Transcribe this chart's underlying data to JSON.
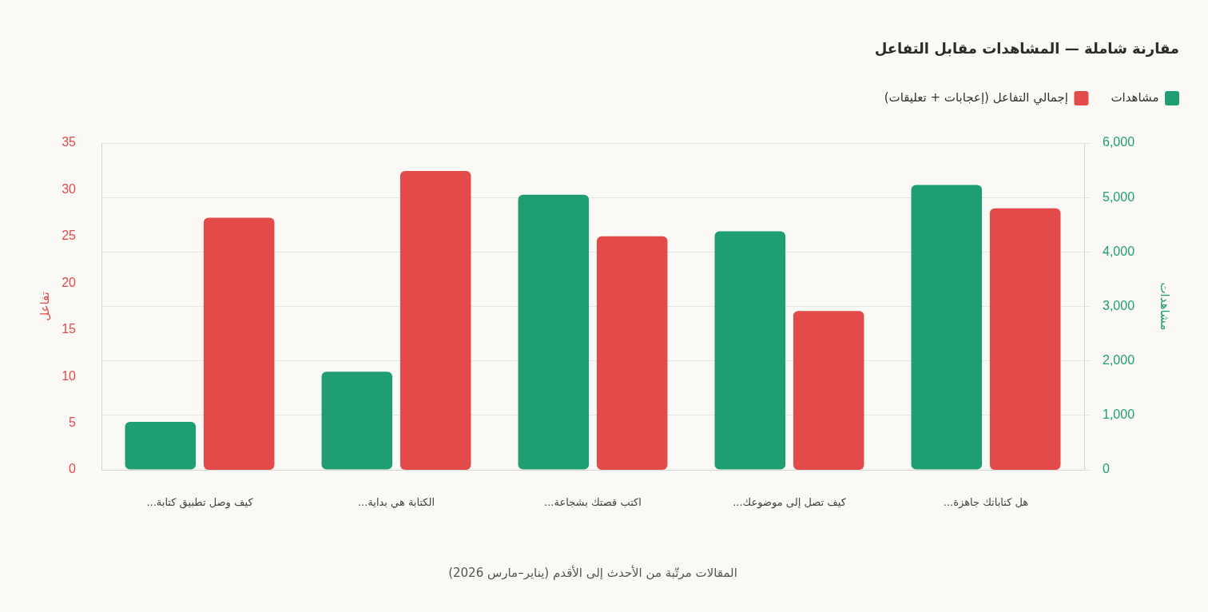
{
  "chart_data": {
    "type": "bar",
    "title": "مقارنة شاملة — المشاهدات مقابل التفاعل",
    "categories": [
      "كيف وصل تطبيق كتابة...",
      "الكتابة هي بداية...",
      "اكتب قصتك بشجاعة...",
      "كيف تصل إلى موضوعك...",
      "هل كتاباتك جاهزة..."
    ],
    "series": [
      {
        "name": "مشاهدات",
        "color": "#1f9e74",
        "axis": "y2",
        "values": [
          880,
          1800,
          5050,
          4380,
          5230
        ]
      },
      {
        "name": "إجمالي التفاعل (إعجابات + تعليقات)",
        "color": "#e24b4a",
        "values": [
          27,
          32,
          25,
          17,
          28
        ]
      }
    ],
    "xlabel": "المقالات مرتّبة من الأحدث إلى الأقدم (يناير–مارس 2026)",
    "ylabel": "تفاعل",
    "y2label": "مشاهدات",
    "ylim": [
      0,
      35
    ],
    "yticks": [
      0,
      5,
      10,
      15,
      20,
      25,
      30,
      35
    ],
    "y2lim": [
      0,
      6000
    ],
    "y2ticks": [
      0,
      {
        "value": 1000,
        "label": "1,000"
      },
      {
        "value": 2000,
        "label": "2,000"
      },
      {
        "value": 3000,
        "label": "3,000"
      },
      {
        "value": 4000,
        "label": "4,000"
      },
      {
        "value": 5000,
        "label": "5,000"
      },
      {
        "value": 6000,
        "label": "6,000"
      }
    ],
    "grid": "y2",
    "legend": "top right"
  }
}
